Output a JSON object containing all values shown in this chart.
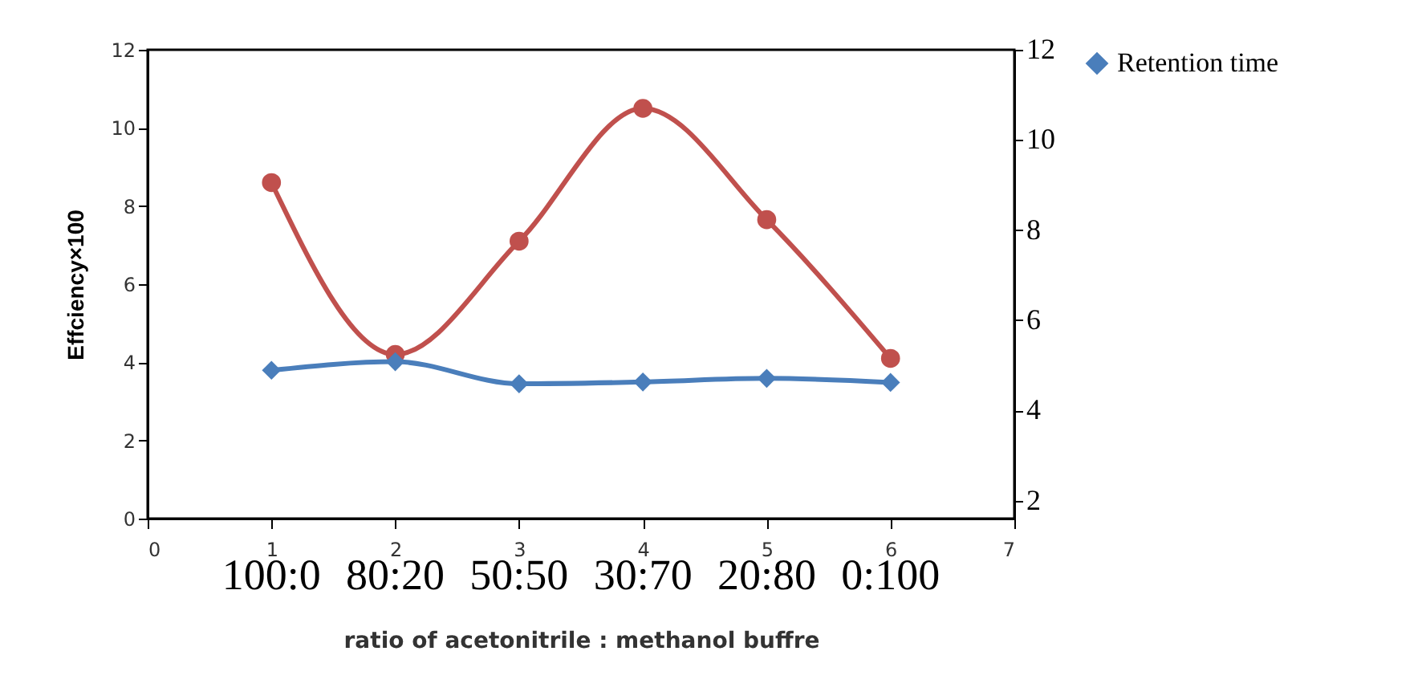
{
  "chart_data": {
    "type": "line",
    "xlabel": "ratio of acetonitrile : methanol buffre",
    "ylabel": "Effciency×100",
    "x": [
      1,
      2,
      3,
      4,
      5,
      6
    ],
    "xlim": [
      0,
      7
    ],
    "xticks": [
      0,
      1,
      2,
      3,
      4,
      5,
      6,
      7
    ],
    "ylim": [
      0,
      12
    ],
    "yticks": [
      0,
      2,
      4,
      6,
      8,
      10,
      12
    ],
    "y2lim": [
      1.6,
      12
    ],
    "y2ticks": [
      2,
      4,
      6,
      8,
      10,
      12
    ],
    "series": [
      {
        "color": "#c0504d",
        "marker": "circle",
        "values": [
          8.6,
          4.2,
          7.1,
          10.5,
          7.65,
          4.1
        ]
      },
      {
        "name": "Retention time",
        "color": "#4a7ebb",
        "marker": "diamond",
        "axis": "y2",
        "values": [
          4.89,
          5.08,
          4.59,
          4.63,
          4.71,
          4.62
        ]
      }
    ],
    "annotations": [
      "100:0",
      "80:20",
      "50:50",
      "30:70",
      "20:80",
      "0:100"
    ],
    "legend": "right",
    "grid": false
  }
}
